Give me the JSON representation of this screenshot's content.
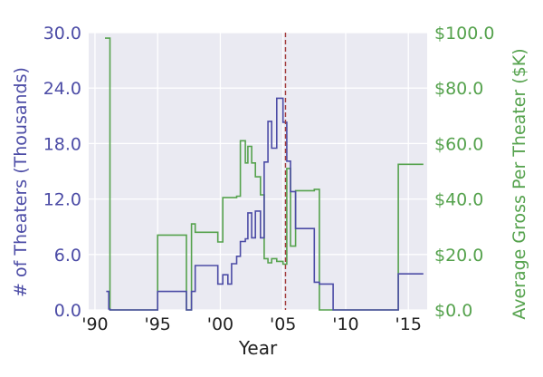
{
  "colors": {
    "plot_bg": "#eaeaf2",
    "grid": "#ffffff",
    "theaters": "#4c4ca6",
    "gross": "#55a24d",
    "vline": "#a23a3a",
    "axis_text": "#222222"
  },
  "chart_data": {
    "type": "line",
    "step": true,
    "xlabel": "Year",
    "ylabel_left": "# of Theaters (Thousands)",
    "ylabel_right": "Average Gross Per Theater ($K)",
    "xlim": [
      1989.5,
      2016.5
    ],
    "ylim_left": [
      0,
      30
    ],
    "ylim_right": [
      0,
      100
    ],
    "x_ticks": [
      1990,
      1995,
      2000,
      2005,
      2010,
      2015
    ],
    "x_tick_labels": [
      "'90",
      "'95",
      "'00",
      "'05",
      "'10",
      "'15"
    ],
    "y_left_ticks": [
      0,
      6,
      12,
      18,
      24,
      30
    ],
    "y_left_tick_labels": [
      "0.0",
      "6.0",
      "12.0",
      "18.0",
      "24.0",
      "30.0"
    ],
    "y_right_ticks": [
      0,
      20,
      40,
      60,
      80,
      100
    ],
    "y_right_tick_labels": [
      "$0.0",
      "$20.0",
      "$40.0",
      "$60.0",
      "$80.0",
      "$100.0"
    ],
    "grid": true,
    "vline_x": 2005.2,
    "series": [
      {
        "axis": "left",
        "x": [
          1990.9,
          1991.1,
          1991.2,
          1994.0,
          1995.0,
          1996.8,
          1997.3,
          1997.7,
          1998.0,
          1999.0,
          1999.8,
          2000.2,
          2000.6,
          2000.9,
          2001.3,
          2001.6,
          2002.0,
          2002.2,
          2002.5,
          2002.8,
          2003.2,
          2003.5,
          2003.8,
          2004.1,
          2004.5,
          2005.0,
          2005.3,
          2005.6,
          2006.0,
          2007.5,
          2007.9,
          2009.0,
          2012.0,
          2014.2,
          2016.2
        ],
        "y": [
          2.0,
          0.1,
          0.0,
          0.0,
          2.0,
          2.0,
          0.0,
          2.0,
          4.8,
          4.8,
          2.8,
          3.8,
          2.8,
          5.0,
          5.8,
          7.4,
          7.7,
          10.5,
          7.8,
          10.7,
          7.8,
          16.0,
          20.4,
          17.5,
          22.9,
          20.3,
          16.1,
          12.8,
          8.8,
          3.0,
          2.8,
          0.0,
          0.0,
          3.9,
          3.9
        ]
      },
      {
        "axis": "right",
        "x": [
          1990.8,
          1991.2,
          1994.0,
          1995.0,
          1996.8,
          1997.3,
          1997.7,
          1998.0,
          1999.0,
          1999.8,
          2000.2,
          2000.9,
          2001.3,
          2001.6,
          2002.0,
          2002.2,
          2002.5,
          2002.8,
          2003.2,
          2003.5,
          2003.8,
          2004.1,
          2004.5,
          2005.0,
          2005.3,
          2005.6,
          2006.0,
          2007.5,
          2007.9,
          2009.0,
          2012.0,
          2014.2,
          2016.2
        ],
        "y": [
          98.0,
          0.0,
          0.0,
          27.0,
          27.0,
          0.0,
          31.0,
          28.0,
          28.0,
          24.5,
          40.5,
          40.5,
          41.0,
          61.0,
          53.0,
          59.0,
          53.0,
          48.0,
          41.5,
          18.5,
          17.0,
          18.5,
          17.5,
          16.5,
          51.0,
          23.0,
          43.0,
          43.5,
          0.0,
          0.0,
          0.0,
          52.5,
          52.5
        ]
      }
    ]
  }
}
